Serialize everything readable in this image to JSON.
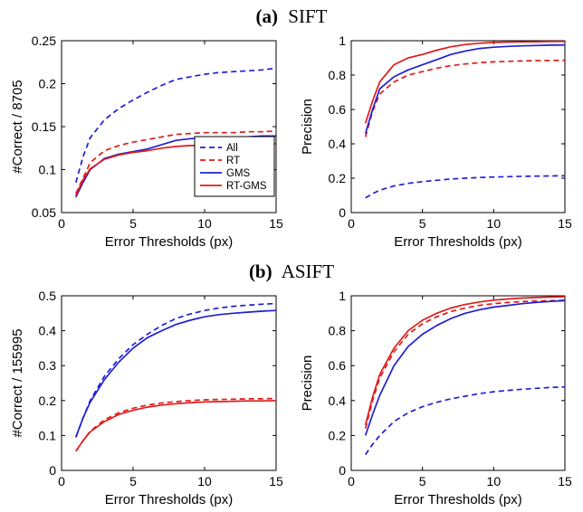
{
  "panels": [
    {
      "id": "a",
      "label": "(a)",
      "title": "SIFT",
      "charts": [
        {
          "type": "line",
          "xlabel": "Error Thresholds (px)",
          "ylabel": "#Correct / 8705",
          "xlim": [
            0,
            15
          ],
          "ylim": [
            0.05,
            0.25
          ],
          "xticks": [
            "0",
            "5",
            "10",
            "15"
          ],
          "yticks": [
            "0.05",
            "0.1",
            "0.15",
            "0.2",
            "0.25"
          ],
          "grid": false,
          "legend": {
            "position": "inside-lower-right",
            "entries": [
              "All",
              "RT",
              "GMS",
              "RT-GMS"
            ]
          },
          "x": [
            1,
            1.5,
            2,
            3,
            4,
            5,
            6,
            7,
            8,
            9,
            10,
            11,
            12,
            13,
            14,
            15
          ],
          "series": [
            {
              "name": "All",
              "color": "#1f1fd6",
              "dash": true,
              "values": [
                0.085,
                0.115,
                0.137,
                0.158,
                0.171,
                0.181,
                0.19,
                0.198,
                0.205,
                0.208,
                0.211,
                0.213,
                0.214,
                0.215,
                0.216,
                0.218
              ]
            },
            {
              "name": "RT",
              "color": "#e01a1a",
              "dash": true,
              "values": [
                0.072,
                0.09,
                0.108,
                0.122,
                0.128,
                0.132,
                0.135,
                0.138,
                0.141,
                0.142,
                0.143,
                0.143,
                0.143,
                0.144,
                0.144,
                0.145
              ]
            },
            {
              "name": "GMS",
              "color": "#1f1fd6",
              "dash": false,
              "values": [
                0.068,
                0.085,
                0.1,
                0.113,
                0.118,
                0.121,
                0.124,
                0.129,
                0.134,
                0.136,
                0.137,
                0.138,
                0.138,
                0.138,
                0.139,
                0.139
              ]
            },
            {
              "name": "RT-GMS",
              "color": "#e01a1a",
              "dash": false,
              "values": [
                0.07,
                0.088,
                0.101,
                0.112,
                0.117,
                0.12,
                0.122,
                0.125,
                0.127,
                0.128,
                0.128,
                0.129,
                0.129,
                0.129,
                0.13,
                0.13
              ]
            }
          ]
        },
        {
          "type": "line",
          "xlabel": "Error Thresholds (px)",
          "ylabel": "Precision",
          "xlim": [
            0,
            15
          ],
          "ylim": [
            0,
            1
          ],
          "xticks": [
            "0",
            "5",
            "10",
            "15"
          ],
          "yticks": [
            "0",
            "0.2",
            "0.4",
            "0.6",
            "0.8",
            "1"
          ],
          "grid": false,
          "x": [
            1,
            1.5,
            2,
            3,
            4,
            5,
            6,
            7,
            8,
            9,
            10,
            11,
            12,
            13,
            14,
            15
          ],
          "series": [
            {
              "name": "All",
              "color": "#1f1fd6",
              "dash": true,
              "values": [
                0.085,
                0.11,
                0.13,
                0.155,
                0.17,
                0.18,
                0.188,
                0.195,
                0.2,
                0.204,
                0.207,
                0.209,
                0.211,
                0.212,
                0.213,
                0.214
              ]
            },
            {
              "name": "RT",
              "color": "#e01a1a",
              "dash": true,
              "values": [
                0.44,
                0.59,
                0.69,
                0.76,
                0.8,
                0.82,
                0.84,
                0.855,
                0.865,
                0.872,
                0.877,
                0.88,
                0.882,
                0.884,
                0.885,
                0.886
              ]
            },
            {
              "name": "GMS",
              "color": "#1f1fd6",
              "dash": false,
              "values": [
                0.46,
                0.6,
                0.72,
                0.79,
                0.83,
                0.86,
                0.89,
                0.92,
                0.94,
                0.955,
                0.962,
                0.967,
                0.97,
                0.972,
                0.974,
                0.975
              ]
            },
            {
              "name": "RT-GMS",
              "color": "#e01a1a",
              "dash": false,
              "values": [
                0.52,
                0.65,
                0.76,
                0.86,
                0.9,
                0.92,
                0.945,
                0.965,
                0.978,
                0.985,
                0.99,
                0.992,
                0.993,
                0.994,
                0.995,
                0.996
              ]
            }
          ]
        }
      ]
    },
    {
      "id": "b",
      "label": "(b)",
      "title": "ASIFT",
      "charts": [
        {
          "type": "line",
          "xlabel": "Error Thresholds (px)",
          "ylabel": "#Correct / 155995",
          "xlim": [
            0,
            15
          ],
          "ylim": [
            0,
            0.5
          ],
          "xticks": [
            "0",
            "5",
            "10",
            "15"
          ],
          "yticks": [
            "0",
            "0.1",
            "0.2",
            "0.3",
            "0.4",
            "0.5"
          ],
          "grid": false,
          "x": [
            1,
            1.5,
            2,
            3,
            4,
            5,
            6,
            7,
            8,
            9,
            10,
            11,
            12,
            13,
            14,
            15
          ],
          "series": [
            {
              "name": "All",
              "color": "#1f1fd6",
              "dash": true,
              "values": [
                0.095,
                0.15,
                0.2,
                0.27,
                0.32,
                0.36,
                0.39,
                0.415,
                0.435,
                0.448,
                0.458,
                0.465,
                0.47,
                0.473,
                0.476,
                0.478
              ]
            },
            {
              "name": "RT",
              "color": "#e01a1a",
              "dash": true,
              "values": [
                0.055,
                0.085,
                0.112,
                0.145,
                0.165,
                0.178,
                0.187,
                0.193,
                0.197,
                0.2,
                0.202,
                0.203,
                0.204,
                0.205,
                0.205,
                0.206
              ]
            },
            {
              "name": "GMS",
              "color": "#1f1fd6",
              "dash": false,
              "values": [
                0.095,
                0.15,
                0.195,
                0.26,
                0.31,
                0.35,
                0.38,
                0.4,
                0.418,
                0.43,
                0.44,
                0.446,
                0.45,
                0.453,
                0.456,
                0.458
              ]
            },
            {
              "name": "RT-GMS",
              "color": "#e01a1a",
              "dash": false,
              "values": [
                0.055,
                0.085,
                0.11,
                0.14,
                0.16,
                0.172,
                0.181,
                0.187,
                0.191,
                0.194,
                0.196,
                0.197,
                0.198,
                0.199,
                0.199,
                0.2
              ]
            }
          ]
        },
        {
          "type": "line",
          "xlabel": "Error Thresholds (px)",
          "ylabel": "Precision",
          "xlim": [
            0,
            15
          ],
          "ylim": [
            0,
            1
          ],
          "xticks": [
            "0",
            "5",
            "10",
            "15"
          ],
          "yticks": [
            "0",
            "0.2",
            "0.4",
            "0.6",
            "0.8",
            "1"
          ],
          "grid": false,
          "x": [
            1,
            1.5,
            2,
            3,
            4,
            5,
            6,
            7,
            8,
            9,
            10,
            11,
            12,
            13,
            14,
            15
          ],
          "series": [
            {
              "name": "All",
              "color": "#1f1fd6",
              "dash": true,
              "values": [
                0.09,
                0.15,
                0.2,
                0.28,
                0.33,
                0.365,
                0.39,
                0.41,
                0.425,
                0.44,
                0.45,
                0.458,
                0.465,
                0.47,
                0.475,
                0.478
              ]
            },
            {
              "name": "RT",
              "color": "#e01a1a",
              "dash": true,
              "values": [
                0.24,
                0.4,
                0.53,
                0.68,
                0.78,
                0.84,
                0.88,
                0.91,
                0.93,
                0.945,
                0.955,
                0.962,
                0.967,
                0.97,
                0.972,
                0.975
              ]
            },
            {
              "name": "GMS",
              "color": "#1f1fd6",
              "dash": false,
              "values": [
                0.2,
                0.32,
                0.43,
                0.6,
                0.71,
                0.78,
                0.83,
                0.87,
                0.9,
                0.92,
                0.935,
                0.945,
                0.955,
                0.962,
                0.968,
                0.972
              ]
            },
            {
              "name": "RT-GMS",
              "color": "#e01a1a",
              "dash": false,
              "values": [
                0.26,
                0.42,
                0.55,
                0.7,
                0.8,
                0.86,
                0.9,
                0.93,
                0.95,
                0.965,
                0.975,
                0.982,
                0.987,
                0.99,
                0.993,
                0.995
              ]
            }
          ]
        }
      ]
    }
  ]
}
